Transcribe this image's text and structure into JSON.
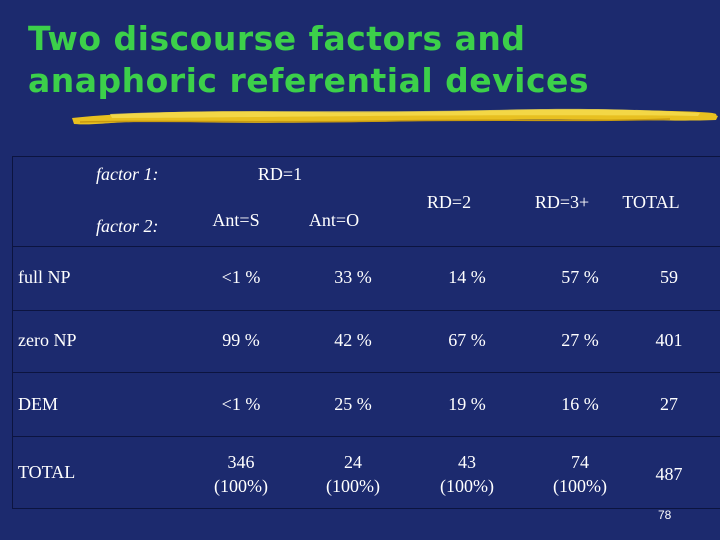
{
  "slide": {
    "title_line1": "Two discourse factors and",
    "title_line2": "anaphoric referential devices",
    "page_number": "78"
  },
  "table": {
    "factor1_label": "factor 1:",
    "factor2_label": "factor 2:",
    "rd1_header": "RD=1",
    "ant_s_header": "Ant=S",
    "ant_o_header": "Ant=O",
    "rd2_header": "RD=2",
    "rd3_header": "RD=3+",
    "total_header": "TOTAL",
    "rows": [
      {
        "label": "full NP",
        "ant_s": "<1 %",
        "ant_o": "33 %",
        "rd2": "14 %",
        "rd3": "57 %",
        "total": "59"
      },
      {
        "label": "zero NP",
        "ant_s": "99 %",
        "ant_o": "42 %",
        "rd2": "67 %",
        "rd3": "27 %",
        "total": "401"
      },
      {
        "label": "DEM",
        "ant_s": "<1 %",
        "ant_o": "25 %",
        "rd2": "19 %",
        "rd3": "16 %",
        "total": "27"
      }
    ],
    "totals_row": {
      "label": "TOTAL",
      "ant_s_count": "346",
      "ant_s_pct": "(100%)",
      "ant_o_count": "24",
      "ant_o_pct": "(100%)",
      "rd2_count": "43",
      "rd2_pct": "(100%)",
      "rd3_count": "74",
      "rd3_pct": "(100%)",
      "grand_total": "487"
    }
  },
  "colors": {
    "background": "#1c2a6e",
    "title": "#3cd04a",
    "stroke": "#e8c020",
    "text": "#ffffff"
  }
}
